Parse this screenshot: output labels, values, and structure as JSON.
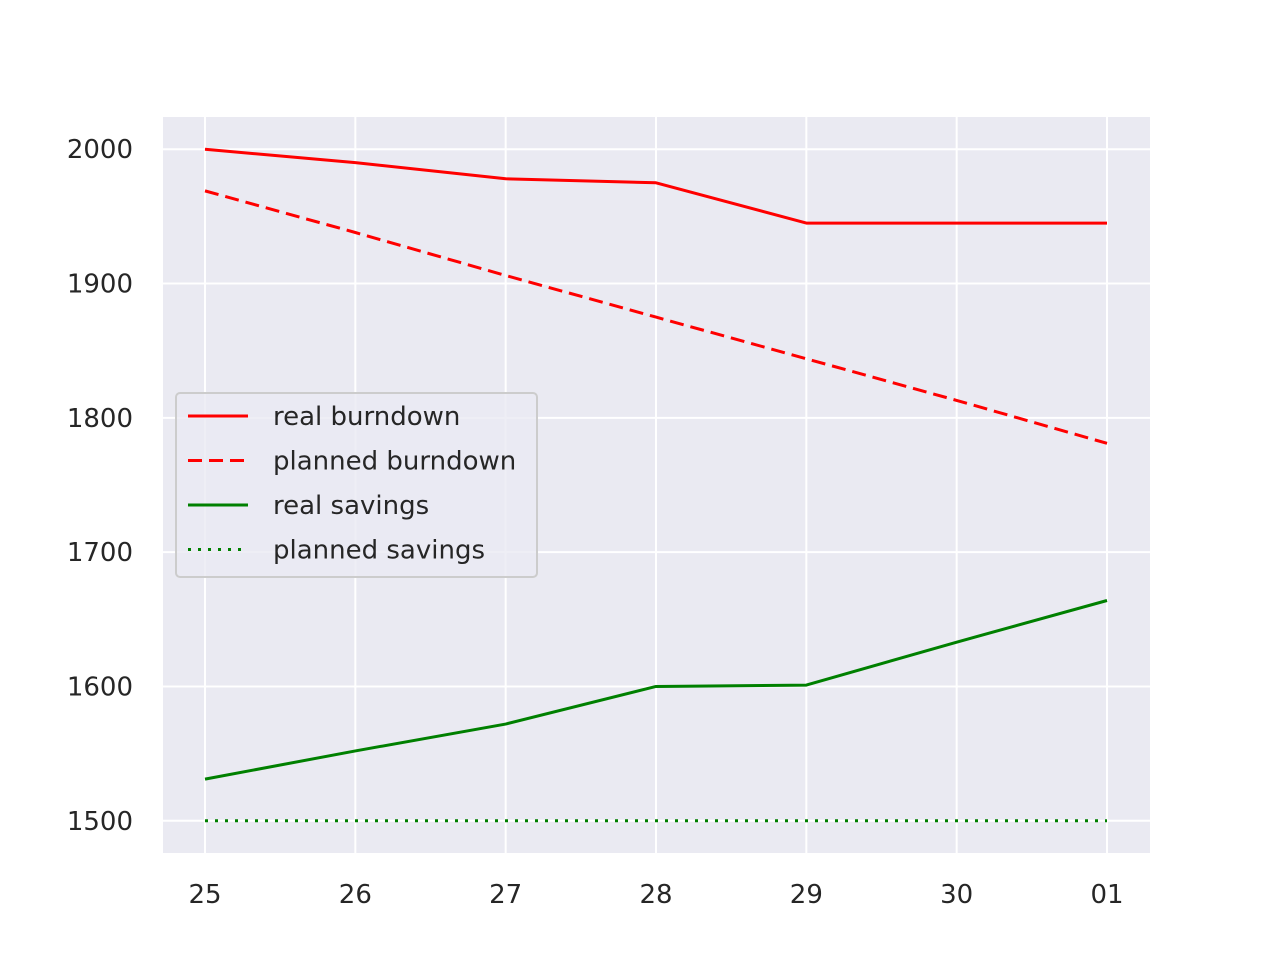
{
  "chart_data": {
    "type": "line",
    "title": "",
    "xlabel": "",
    "ylabel": "",
    "categories": [
      "25",
      "26",
      "27",
      "28",
      "29",
      "30",
      "01"
    ],
    "ylim": [
      1476,
      2024
    ],
    "yticks": [
      1500,
      1600,
      1700,
      1800,
      1900,
      2000
    ],
    "grid": true,
    "background_color": "#eaeaf2",
    "grid_color": "#ffffff",
    "legend_position": "center-left",
    "series": [
      {
        "name": "real burndown",
        "color": "#ff0000",
        "style": "solid",
        "values": [
          2000,
          1990,
          1978,
          1975,
          1945,
          1945,
          1945
        ]
      },
      {
        "name": "planned burndown",
        "color": "#ff0000",
        "style": "dashed",
        "values": [
          1969,
          1938,
          1906,
          1875,
          1844,
          1813,
          1781
        ]
      },
      {
        "name": "real savings",
        "color": "#008000",
        "style": "solid",
        "values": [
          1531,
          1552,
          1572,
          1600,
          1601,
          1633,
          1664
        ]
      },
      {
        "name": "planned savings",
        "color": "#008000",
        "style": "dotted",
        "values": [
          1500,
          1500,
          1500,
          1500,
          1500,
          1500,
          1500
        ]
      }
    ]
  }
}
